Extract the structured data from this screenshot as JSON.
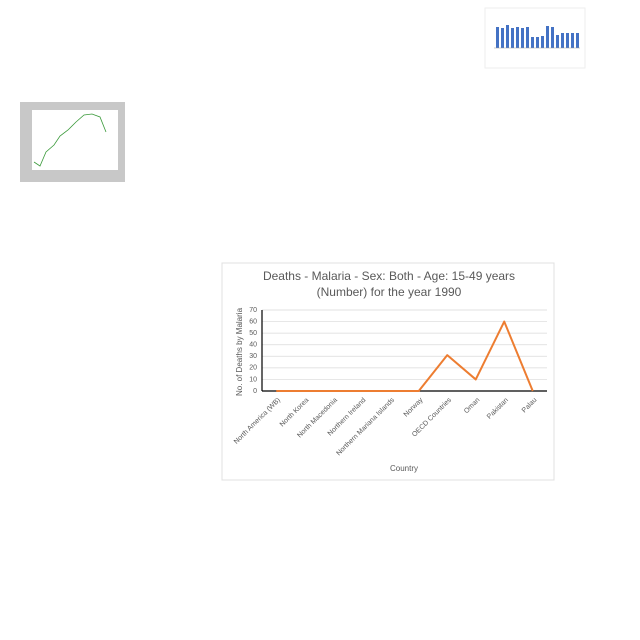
{
  "chart_data": {
    "type": "line",
    "title": [
      "Deaths - Malaria - Sex: Both - Age: 15-49 years",
      "(Number) for the year 1990"
    ],
    "x_label": "Country",
    "y_label": "No. of Deaths by Malaria",
    "categories": [
      "North America (WB)",
      "North Korea",
      "North Macedonia",
      "Northern Ireland",
      "Northern Mariana Islands",
      "Norway",
      "OECD Countries",
      "Oman",
      "Pakistan",
      "Palau"
    ],
    "values": [
      0,
      0,
      0,
      0,
      0,
      0,
      31,
      10,
      60,
      0
    ],
    "color": "#ED7D31",
    "ylim": [
      0,
      70
    ],
    "yticks": [
      0,
      10,
      20,
      30,
      40,
      50,
      60,
      70
    ],
    "grid": true
  }
}
